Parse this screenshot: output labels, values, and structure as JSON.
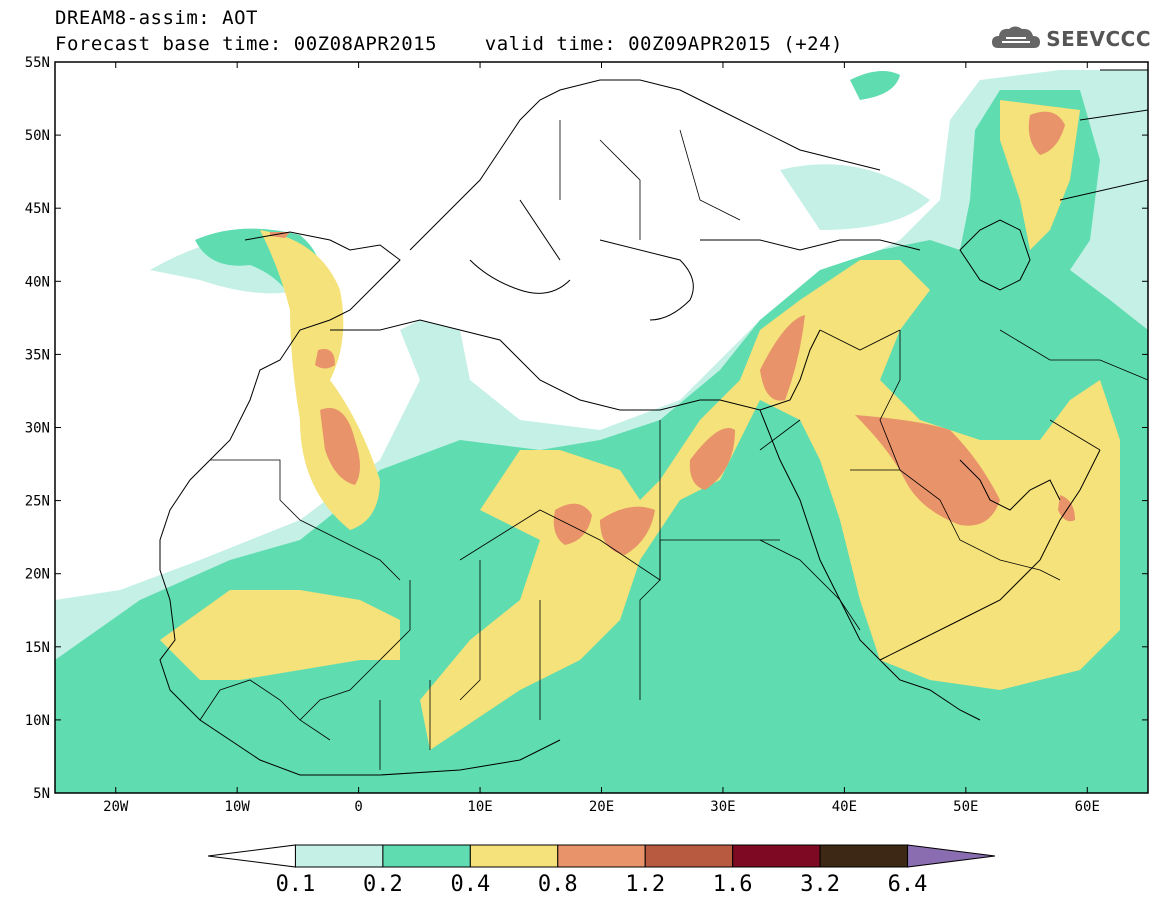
{
  "header": {
    "title": "DREAM8-assim: AOT",
    "subtitle": "Forecast base time: 00Z08APR2015    valid time: 00Z09APR2015 (+24)",
    "logo_text": "SEEVCCC"
  },
  "map": {
    "lon_range": [
      -25,
      65
    ],
    "lat_range": [
      5,
      55
    ],
    "lon_ticks": [
      {
        "value": -20,
        "label": "20W"
      },
      {
        "value": -10,
        "label": "10W"
      },
      {
        "value": 0,
        "label": "0"
      },
      {
        "value": 10,
        "label": "10E"
      },
      {
        "value": 20,
        "label": "20E"
      },
      {
        "value": 30,
        "label": "30E"
      },
      {
        "value": 40,
        "label": "40E"
      },
      {
        "value": 50,
        "label": "50E"
      },
      {
        "value": 60,
        "label": "60E"
      }
    ],
    "lat_ticks": [
      {
        "value": 55,
        "label": "55N"
      },
      {
        "value": 50,
        "label": "50N"
      },
      {
        "value": 45,
        "label": "45N"
      },
      {
        "value": 40,
        "label": "40N"
      },
      {
        "value": 35,
        "label": "35N"
      },
      {
        "value": 30,
        "label": "30N"
      },
      {
        "value": 25,
        "label": "25N"
      },
      {
        "value": 20,
        "label": "20N"
      },
      {
        "value": 15,
        "label": "15N"
      },
      {
        "value": 10,
        "label": "10N"
      },
      {
        "value": 5,
        "label": "5N"
      }
    ]
  },
  "colorbar": {
    "colors": [
      "#ffffff",
      "#c4f0e6",
      "#5fdcb0",
      "#f5e27a",
      "#e8936a",
      "#b85a3f",
      "#7d0a22",
      "#3c2815",
      "#8a6db0"
    ],
    "labels": [
      "0.1",
      "0.2",
      "0.4",
      "0.8",
      "1.2",
      "1.6",
      "3.2",
      "6.4"
    ]
  }
}
